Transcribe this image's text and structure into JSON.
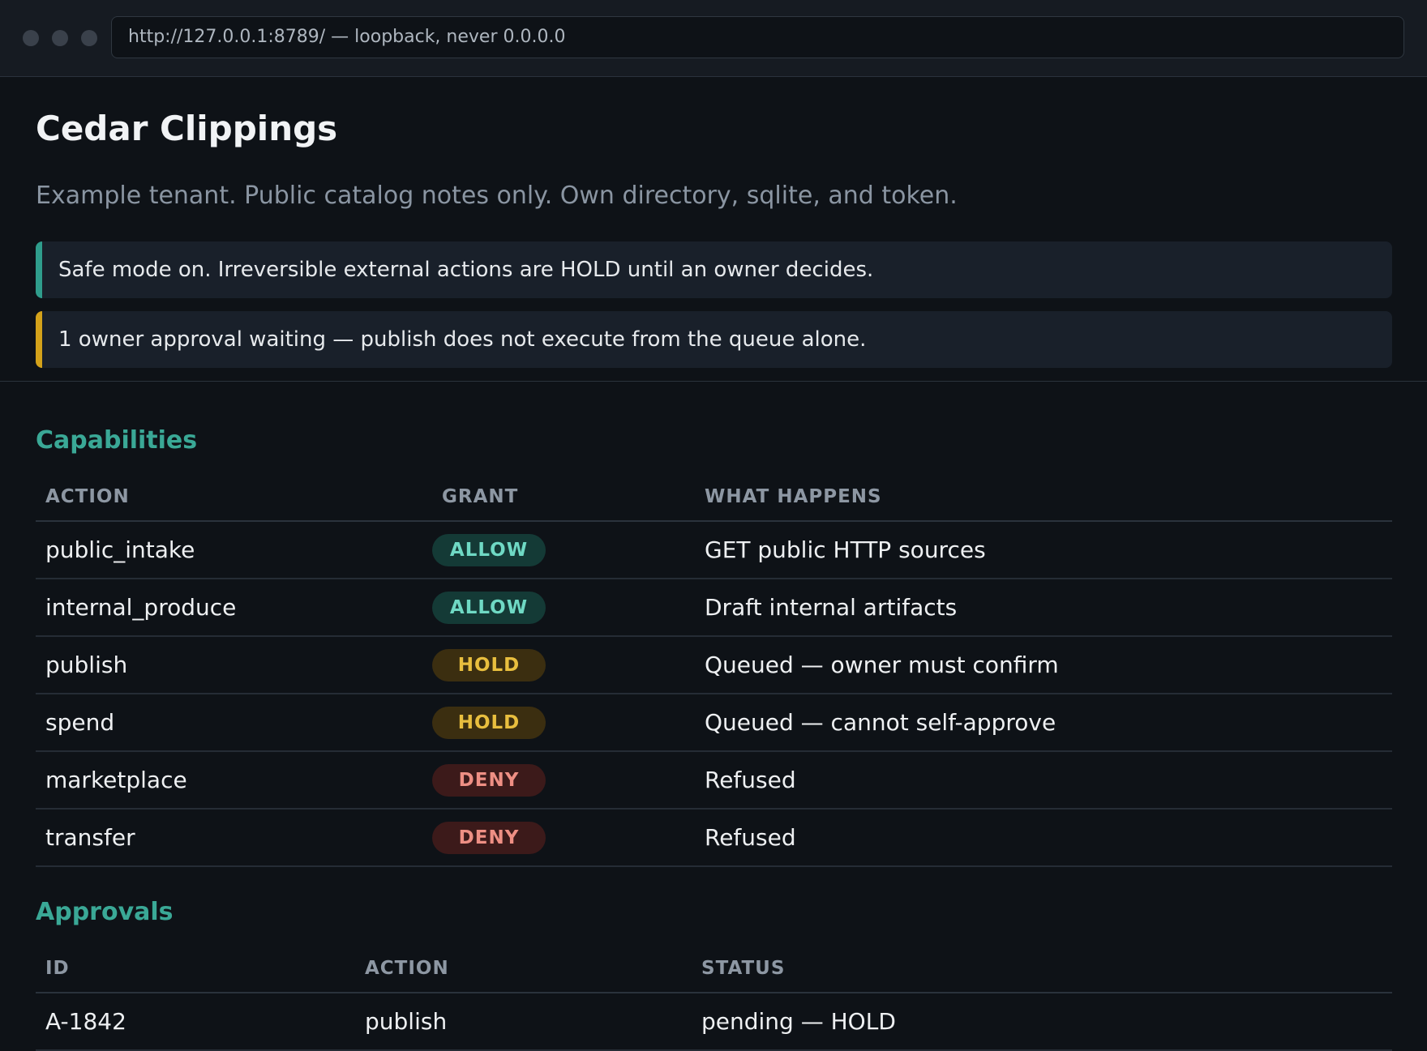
{
  "browser": {
    "url": "http://127.0.0.1:8789/ — loopback, never 0.0.0.0"
  },
  "header": {
    "title": "Cedar Clippings",
    "subtitle": "Example tenant. Public catalog notes only. Own directory, sqlite, and token.",
    "notices": [
      {
        "text": "Safe mode on. Irreversible external actions are HOLD until an owner decides.",
        "accent": "#2f9d8c"
      },
      {
        "text": "1 owner approval waiting — publish does not execute from the queue alone.",
        "accent": "#d4a21a"
      }
    ]
  },
  "capabilities": {
    "heading": "Capabilities",
    "columns": [
      "ACTION",
      "GRANT",
      "WHAT HAPPENS"
    ],
    "rows": [
      {
        "action": "public_intake",
        "grant": "ALLOW",
        "what": "GET public HTTP sources"
      },
      {
        "action": "internal_produce",
        "grant": "ALLOW",
        "what": "Draft internal artifacts"
      },
      {
        "action": "publish",
        "grant": "HOLD",
        "what": "Queued — owner must confirm"
      },
      {
        "action": "spend",
        "grant": "HOLD",
        "what": "Queued — cannot self-approve"
      },
      {
        "action": "marketplace",
        "grant": "DENY",
        "what": "Refused"
      },
      {
        "action": "transfer",
        "grant": "DENY",
        "what": "Refused"
      }
    ]
  },
  "approvals": {
    "heading": "Approvals",
    "columns": [
      "ID",
      "ACTION",
      "STATUS"
    ],
    "rows": [
      {
        "id": "A-1842",
        "action": "publish",
        "status": "pending — HOLD"
      }
    ]
  },
  "colors": {
    "accent_teal": "#3aa896",
    "allow": "#6fd9c4",
    "hold": "#e8be3e",
    "deny": "#ee8f84"
  }
}
